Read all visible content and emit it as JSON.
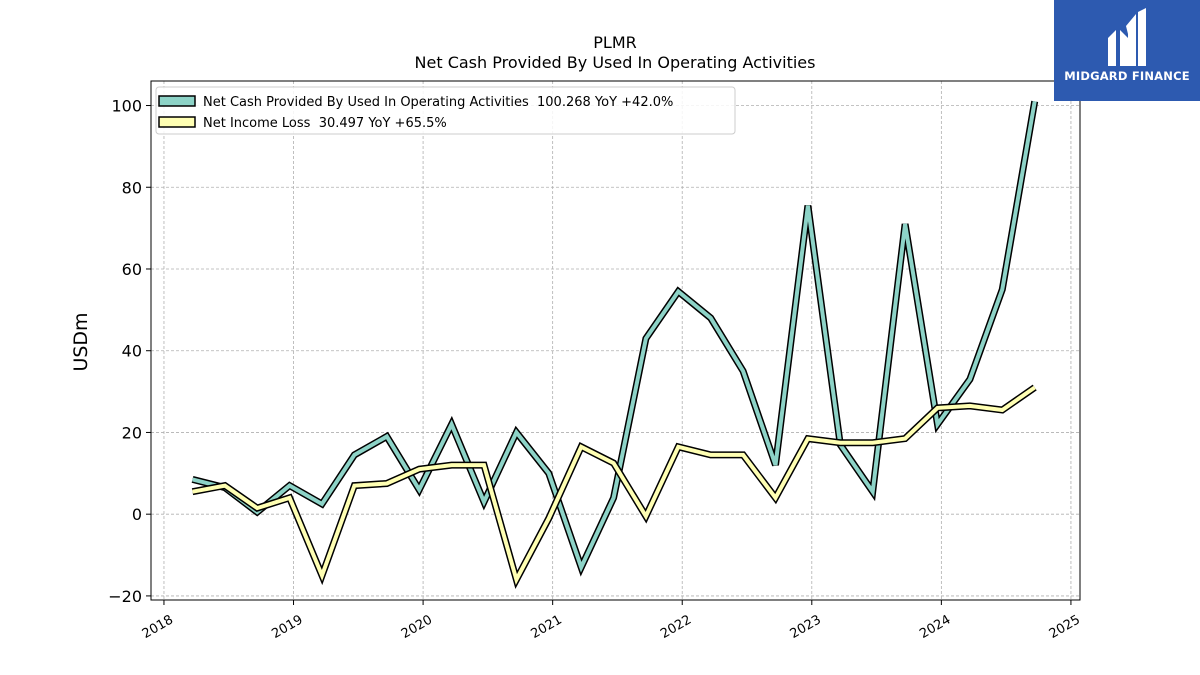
{
  "chart_data": {
    "type": "line",
    "title": "PLMR",
    "subtitle": "Net Cash Provided By Used In Operating Activities",
    "xlabel": "",
    "ylabel": "USDm",
    "xlim": [
      2017.9,
      2025.07
    ],
    "ylim": [
      -21,
      106
    ],
    "x_ticks": [
      2018,
      2019,
      2020,
      2021,
      2022,
      2023,
      2024,
      2025
    ],
    "x_tick_labels": [
      "2018",
      "2019",
      "2020",
      "2021",
      "2022",
      "2023",
      "2024",
      "2025"
    ],
    "y_ticks": [
      -20,
      0,
      20,
      40,
      60,
      80,
      100
    ],
    "y_tick_labels": [
      "−20",
      "0",
      "20",
      "40",
      "60",
      "80",
      "100"
    ],
    "grid": true,
    "legend_position": "top-left",
    "series": [
      {
        "name": "Net Cash Provided By Used In Operating Activities  100.268 YoY +42.0%",
        "color": "#8dd3c7",
        "x": [
          2018.22,
          2018.47,
          2018.72,
          2018.97,
          2019.22,
          2019.47,
          2019.72,
          2019.97,
          2020.22,
          2020.47,
          2020.72,
          2020.97,
          2021.22,
          2021.47,
          2021.72,
          2021.97,
          2022.22,
          2022.47,
          2022.72,
          2022.97,
          2023.22,
          2023.47,
          2023.72,
          2023.97,
          2024.22,
          2024.47,
          2024.72
        ],
        "y": [
          8.5,
          6.5,
          0.5,
          7,
          2.5,
          14.5,
          19,
          6,
          22,
          3,
          20,
          10,
          -13,
          4,
          43,
          54.5,
          48,
          35,
          12,
          75.5,
          17,
          5.5,
          71,
          22,
          33,
          55,
          101
        ]
      },
      {
        "name": "Net Income Loss  30.497 YoY +65.5%",
        "color": "#ffffb3",
        "x": [
          2018.22,
          2018.47,
          2018.72,
          2018.97,
          2019.22,
          2019.47,
          2019.72,
          2019.97,
          2020.22,
          2020.47,
          2020.72,
          2020.97,
          2021.22,
          2021.47,
          2021.72,
          2021.97,
          2022.22,
          2022.47,
          2022.72,
          2022.97,
          2023.22,
          2023.47,
          2023.72,
          2023.97,
          2024.22,
          2024.47,
          2024.72
        ],
        "y": [
          5.5,
          7,
          1.5,
          4,
          -15,
          7,
          7.5,
          11,
          12,
          12,
          -16,
          -1,
          16.5,
          12.5,
          -0.5,
          16.5,
          14.5,
          14.5,
          4,
          18.5,
          17.5,
          17.5,
          18.5,
          26,
          26.5,
          25.5,
          31
        ]
      }
    ]
  },
  "logo": {
    "text": "MIDGARD FINANCE",
    "icon": "midgard-monogram-icon",
    "background": "#2d5ab0"
  }
}
